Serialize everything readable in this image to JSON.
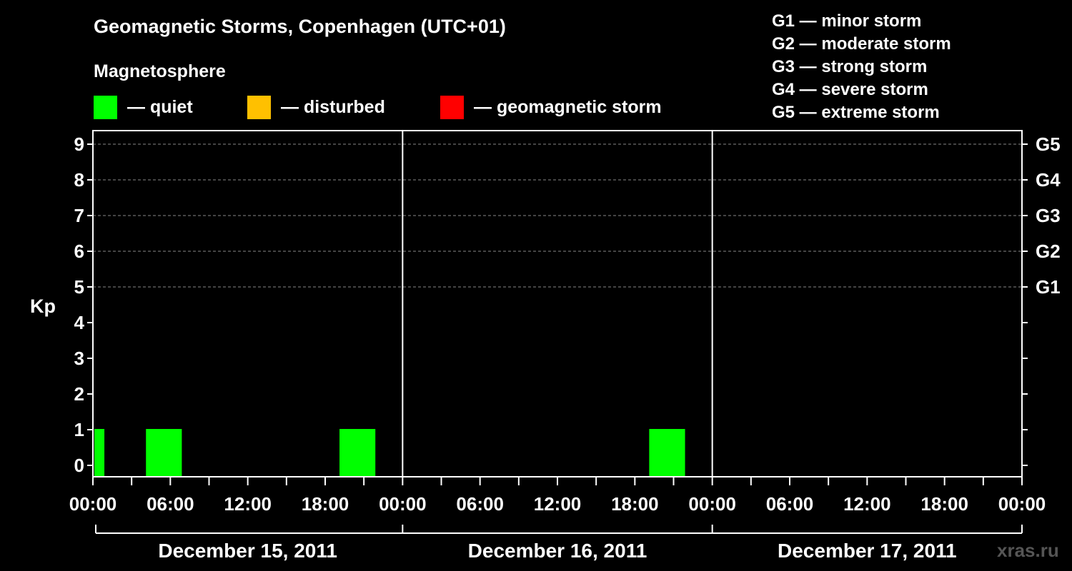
{
  "chart_data": {
    "type": "bar",
    "title": "Geomagnetic Storms, Copenhagen (UTC+01)",
    "ylabel": "Kp",
    "ylim": [
      0,
      9
    ],
    "y_ticks": [
      "0",
      "1",
      "2",
      "3",
      "4",
      "5",
      "6",
      "7",
      "8",
      "9"
    ],
    "storm_levels": [
      {
        "label": "G1",
        "kp": 5
      },
      {
        "label": "G2",
        "kp": 6
      },
      {
        "label": "G3",
        "kp": 7
      },
      {
        "label": "G4",
        "kp": 8
      },
      {
        "label": "G5",
        "kp": 9
      }
    ],
    "x_tick_labels": [
      "00:00",
      "06:00",
      "12:00",
      "18:00",
      "00:00",
      "06:00",
      "12:00",
      "18:00",
      "00:00",
      "06:00",
      "12:00",
      "18:00",
      "00:00"
    ],
    "days": [
      "December 15, 2011",
      "December 16, 2011",
      "December 17, 2011"
    ],
    "bars": [
      {
        "start_hour": 0,
        "end_hour": 1,
        "kp": 1,
        "status": "quiet"
      },
      {
        "start_hour": 4,
        "end_hour": 7,
        "kp": 1,
        "status": "quiet"
      },
      {
        "start_hour": 19,
        "end_hour": 22,
        "kp": 1,
        "status": "quiet"
      },
      {
        "start_hour": 43,
        "end_hour": 46,
        "kp": 1,
        "status": "quiet"
      }
    ]
  },
  "magnetosphere": {
    "title": "Magnetosphere",
    "legend": [
      {
        "key": "quiet",
        "label": "— quiet",
        "color": "#00ff00"
      },
      {
        "key": "disturbed",
        "label": "— disturbed",
        "color": "#ffc000"
      },
      {
        "key": "storm",
        "label": "— geomagnetic storm",
        "color": "#ff0000"
      }
    ]
  },
  "storm_scale": [
    "G1 — minor storm",
    "G2 — moderate storm",
    "G3 — strong storm",
    "G4 — severe storm",
    "G5 — extreme storm"
  ],
  "watermark": "xras.ru"
}
